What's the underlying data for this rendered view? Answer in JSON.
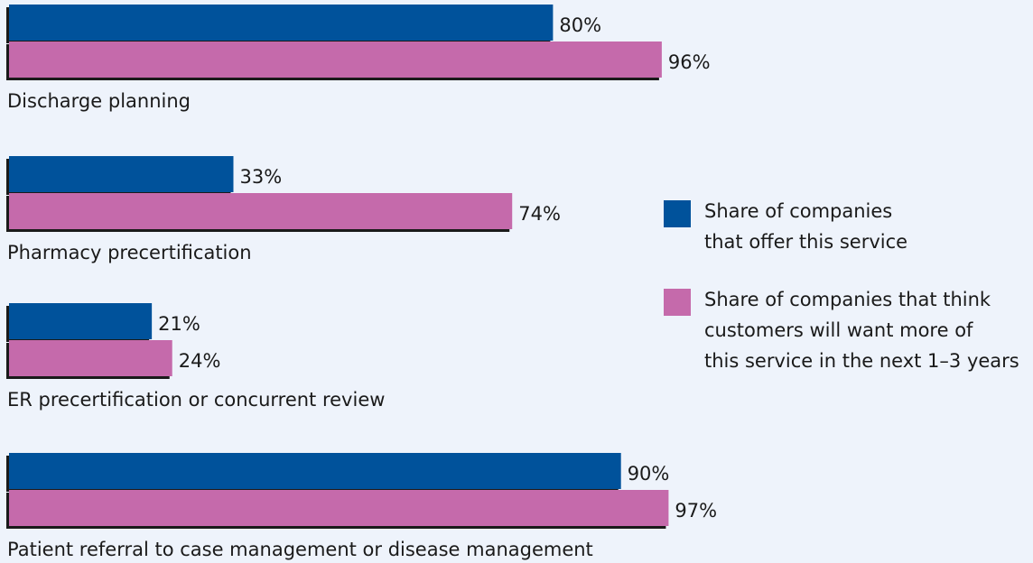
{
  "chart_data": {
    "type": "hbar",
    "categories": [
      "Discharge planning",
      "Pharmacy precertification",
      "ER precertification or concurrent review",
      "Patient referral to case management or disease management"
    ],
    "series": [
      {
        "name": "Share of companies\nthat offer this service",
        "color": "#00529b",
        "values": [
          80,
          33,
          21,
          90
        ],
        "value_labels": [
          "80%",
          "33%",
          "21%",
          "90%"
        ]
      },
      {
        "name": "Share of companies that think\ncustomers will want more of\nthis service in the next 1–3 years",
        "color": "#c56aab",
        "values": [
          96,
          74,
          24,
          97
        ],
        "value_labels": [
          "96%",
          "74%",
          "24%",
          "97%"
        ]
      }
    ],
    "xlim": [
      0,
      100
    ]
  }
}
